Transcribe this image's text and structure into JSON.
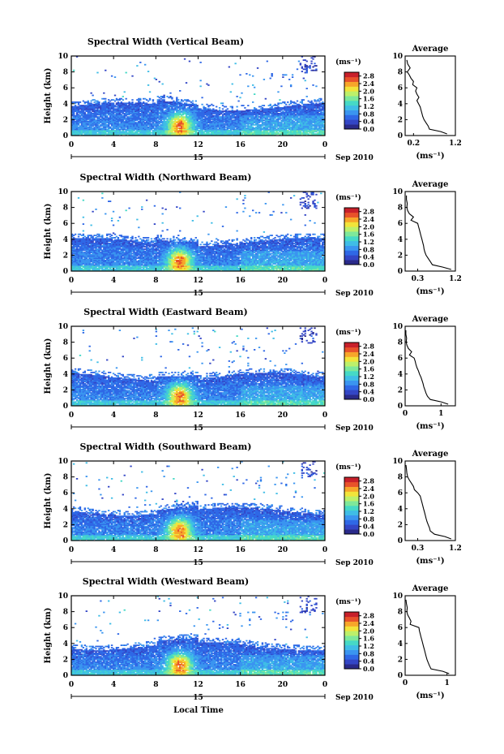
{
  "page": {
    "x_axis_title": "Local Time",
    "date_label": "15",
    "date_suffix": "Sep 2010",
    "avg_title": "Average",
    "colorbar_unit": "(ms⁻¹)",
    "avg_xlabel": "(ms⁻¹)",
    "y_axis_label": "Height (km)"
  },
  "colormap": [
    "#2a2a8a",
    "#3346c6",
    "#2f68e6",
    "#3a95f0",
    "#3fbde6",
    "#46d9c6",
    "#7ee89a",
    "#bdf06a",
    "#f2e43a",
    "#f7a62a",
    "#e8522a",
    "#c8202a"
  ],
  "colorbar_ticks": [
    "0.0",
    "0.4",
    "0.8",
    "1.2",
    "1.6",
    "2.0",
    "2.4",
    "2.8"
  ],
  "colorbar_range": [
    0,
    3.0
  ],
  "chart_data": [
    {
      "type": "heatmap",
      "title": "Spectral Width (Vertical Beam)",
      "xlabel": "Local Time",
      "ylabel": "Height (km)",
      "xlim": [
        0,
        24
      ],
      "ylim": [
        0,
        10
      ],
      "x_ticks": [
        "0",
        "4",
        "8",
        "12",
        "16",
        "20",
        "0"
      ],
      "y_ticks": [
        "0",
        "2",
        "4",
        "6",
        "8",
        "10"
      ],
      "cbar_label": "(ms⁻¹)",
      "seed": 11,
      "avg_profile": {
        "xlabel": "(ms⁻¹)",
        "xlim": [
          0.0,
          1.2
        ],
        "x_ticks": [
          "0.2",
          "1.2"
        ],
        "x_tick_values": [
          0.2,
          1.2
        ],
        "heights": [
          0.2,
          0.5,
          0.8,
          1.2,
          1.6,
          2.0,
          2.4,
          2.8,
          3.2,
          3.6,
          4.0,
          4.4,
          4.8,
          5.2,
          5.6,
          6.0,
          6.4,
          6.8,
          7.2,
          7.6,
          8.0,
          8.5,
          9.0,
          9.5
        ],
        "values": [
          1.0,
          0.85,
          0.58,
          0.55,
          0.5,
          0.45,
          0.42,
          0.4,
          0.38,
          0.36,
          0.32,
          0.28,
          0.33,
          0.28,
          0.25,
          0.28,
          0.18,
          0.2,
          0.14,
          0.1,
          0.05,
          0.12,
          0.06,
          0.04
        ]
      }
    },
    {
      "type": "heatmap",
      "title": "Spectral Width (Northward Beam)",
      "xlabel": "Local Time",
      "ylabel": "Height (km)",
      "xlim": [
        0,
        24
      ],
      "ylim": [
        0,
        10
      ],
      "x_ticks": [
        "0",
        "4",
        "8",
        "12",
        "16",
        "20",
        "0"
      ],
      "y_ticks": [
        "0",
        "2",
        "4",
        "6",
        "8",
        "10"
      ],
      "cbar_label": "(ms⁻¹)",
      "seed": 23,
      "avg_profile": {
        "xlabel": "(ms⁻¹)",
        "xlim": [
          0.0,
          1.2
        ],
        "x_ticks": [
          "0.3",
          "1.2"
        ],
        "x_tick_values": [
          0.3,
          1.2
        ],
        "heights": [
          0.2,
          0.5,
          0.8,
          1.2,
          1.6,
          2.0,
          2.4,
          2.8,
          3.2,
          3.6,
          4.0,
          4.4,
          4.8,
          5.2,
          5.6,
          6.0,
          6.4,
          6.8,
          7.2,
          7.6,
          8.0,
          8.5,
          9.0,
          9.5
        ],
        "values": [
          1.1,
          0.9,
          0.65,
          0.6,
          0.55,
          0.5,
          0.47,
          0.45,
          0.44,
          0.42,
          0.4,
          0.38,
          0.36,
          0.34,
          0.32,
          0.3,
          0.14,
          0.2,
          0.1,
          0.06,
          0.04,
          0.05,
          0.03,
          0.03
        ]
      }
    },
    {
      "type": "heatmap",
      "title": "Spectral Width (Eastward Beam)",
      "xlabel": "Local Time",
      "ylabel": "Height (km)",
      "xlim": [
        0,
        24
      ],
      "ylim": [
        0,
        10
      ],
      "x_ticks": [
        "0",
        "4",
        "8",
        "12",
        "16",
        "20",
        "0"
      ],
      "y_ticks": [
        "0",
        "2",
        "4",
        "6",
        "8",
        "10"
      ],
      "cbar_label": "(ms⁻¹)",
      "seed": 37,
      "avg_profile": {
        "xlabel": "(ms⁻¹)",
        "xlim": [
          0.0,
          1.4
        ],
        "x_ticks": [
          "0",
          "1"
        ],
        "x_tick_values": [
          0,
          1
        ],
        "heights": [
          0.2,
          0.5,
          0.8,
          1.2,
          1.6,
          2.0,
          2.4,
          2.8,
          3.2,
          3.6,
          4.0,
          4.4,
          4.8,
          5.2,
          5.6,
          6.0,
          6.4,
          6.8,
          7.2,
          7.6,
          8.0,
          8.5,
          9.0,
          9.5
        ],
        "values": [
          1.2,
          1.0,
          0.7,
          0.62,
          0.58,
          0.55,
          0.52,
          0.5,
          0.47,
          0.44,
          0.4,
          0.37,
          0.33,
          0.3,
          0.28,
          0.25,
          0.12,
          0.18,
          0.09,
          0.05,
          0.03,
          0.04,
          0.02,
          0.02
        ]
      }
    },
    {
      "type": "heatmap",
      "title": "Spectral Width (Southward Beam)",
      "xlabel": "Local Time",
      "ylabel": "Height (km)",
      "xlim": [
        0,
        24
      ],
      "ylim": [
        0,
        10
      ],
      "x_ticks": [
        "0",
        "4",
        "8",
        "12",
        "16",
        "20",
        "0"
      ],
      "y_ticks": [
        "0",
        "2",
        "4",
        "6",
        "8",
        "10"
      ],
      "cbar_label": "(ms⁻¹)",
      "seed": 51,
      "avg_profile": {
        "xlabel": "(ms⁻¹)",
        "xlim": [
          0.0,
          1.2
        ],
        "x_ticks": [
          "0.3",
          "1.2"
        ],
        "x_tick_values": [
          0.3,
          1.2
        ],
        "heights": [
          0.2,
          0.5,
          0.8,
          1.2,
          1.6,
          2.0,
          2.4,
          2.8,
          3.2,
          3.6,
          4.0,
          4.4,
          4.8,
          5.2,
          5.6,
          6.0,
          6.4,
          6.8,
          7.2,
          7.6,
          8.0,
          8.5,
          9.0,
          9.5
        ],
        "values": [
          1.1,
          0.95,
          0.7,
          0.6,
          0.58,
          0.55,
          0.52,
          0.5,
          0.48,
          0.46,
          0.44,
          0.42,
          0.4,
          0.38,
          0.36,
          0.3,
          0.22,
          0.2,
          0.15,
          0.1,
          0.06,
          0.04,
          0.03,
          0.02
        ]
      }
    },
    {
      "type": "heatmap",
      "title": "Spectral Width (Westward Beam)",
      "xlabel": "Local Time",
      "ylabel": "Height (km)",
      "xlim": [
        0,
        24
      ],
      "ylim": [
        0,
        10
      ],
      "x_ticks": [
        "0",
        "4",
        "8",
        "12",
        "16",
        "20",
        "0"
      ],
      "y_ticks": [
        "0",
        "2",
        "4",
        "6",
        "8",
        "10"
      ],
      "cbar_label": "(ms⁻¹)",
      "seed": 67,
      "avg_profile": {
        "xlabel": "(ms⁻¹)",
        "xlim": [
          0.0,
          1.2
        ],
        "x_ticks": [
          "0",
          "1"
        ],
        "x_tick_values": [
          0,
          1
        ],
        "heights": [
          0.2,
          0.5,
          0.8,
          1.2,
          1.6,
          2.0,
          2.4,
          2.8,
          3.2,
          3.6,
          4.0,
          4.4,
          4.8,
          5.2,
          5.6,
          6.0,
          6.4,
          6.8,
          7.2,
          7.6,
          8.0,
          8.5,
          9.0,
          9.5
        ],
        "values": [
          1.05,
          0.9,
          0.62,
          0.58,
          0.55,
          0.52,
          0.5,
          0.48,
          0.46,
          0.44,
          0.42,
          0.4,
          0.38,
          0.36,
          0.34,
          0.33,
          0.12,
          0.14,
          0.1,
          0.06,
          0.04,
          0.05,
          0.03,
          0.02
        ]
      }
    }
  ]
}
